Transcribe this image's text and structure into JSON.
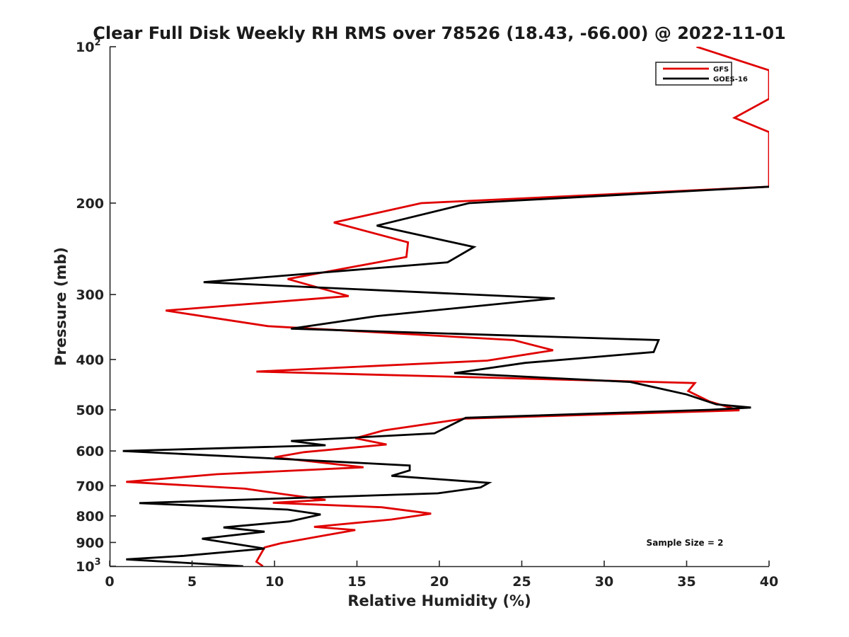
{
  "chart_data": {
    "type": "line",
    "title": "Clear Full Disk Weekly RH RMS over 78526 (18.43, -66.00) @ 2022-11-01",
    "xlabel": "Relative Humidity (%)",
    "ylabel": "Pressure (mb)",
    "xlim": [
      0,
      40
    ],
    "ylim": [
      100,
      1000
    ],
    "y_scale": "log",
    "y_reversed": true,
    "grid": false,
    "legend_position": "top-right",
    "x_ticks": [
      0,
      5,
      10,
      15,
      20,
      25,
      30,
      35,
      40
    ],
    "y_ticks": [
      {
        "value": 100,
        "base": "10",
        "exp": "2"
      },
      {
        "value": 200,
        "label": "200"
      },
      {
        "value": 300,
        "label": "300"
      },
      {
        "value": 400,
        "label": "400"
      },
      {
        "value": 500,
        "label": "500"
      },
      {
        "value": 600,
        "label": "600"
      },
      {
        "value": 700,
        "label": "700"
      },
      {
        "value": 800,
        "label": "800"
      },
      {
        "value": 900,
        "label": "900"
      },
      {
        "value": 1000,
        "base": "10",
        "exp": "3"
      }
    ],
    "annotation": "Sample Size = 2",
    "series": [
      {
        "name": "GFS",
        "color": "#e00000",
        "points": [
          [
            35.6,
            100
          ],
          [
            40,
            111
          ],
          [
            40,
            126
          ],
          [
            37.9,
            137
          ],
          [
            40,
            146
          ],
          [
            40,
            186
          ],
          [
            18.9,
            200
          ],
          [
            13.6,
            218
          ],
          [
            18.1,
            238
          ],
          [
            18.0,
            254
          ],
          [
            10.8,
            280
          ],
          [
            14.5,
            302
          ],
          [
            3.4,
            322
          ],
          [
            9.6,
            345
          ],
          [
            24.5,
            367
          ],
          [
            26.9,
            384
          ],
          [
            22.9,
            402
          ],
          [
            8.9,
            422
          ],
          [
            35.5,
            444
          ],
          [
            35.1,
            460
          ],
          [
            36.4,
            482
          ],
          [
            38.2,
            501
          ],
          [
            21.5,
            520
          ],
          [
            16.6,
            548
          ],
          [
            14.9,
            567
          ],
          [
            16.8,
            583
          ],
          [
            11.8,
            603
          ],
          [
            10.0,
            617
          ],
          [
            15.4,
            645
          ],
          [
            6.5,
            665
          ],
          [
            1.0,
            688
          ],
          [
            8.2,
            709
          ],
          [
            10.6,
            727
          ],
          [
            13.1,
            745
          ],
          [
            9.9,
            755
          ],
          [
            16.5,
            770
          ],
          [
            19.5,
            792
          ],
          [
            17.1,
            813
          ],
          [
            12.4,
            840
          ],
          [
            14.9,
            852
          ],
          [
            13.1,
            872
          ],
          [
            10.4,
            903
          ],
          [
            9.4,
            920
          ],
          [
            8.9,
            980
          ],
          [
            9.3,
            1000
          ]
        ]
      },
      {
        "name": "GOES-16",
        "color": "#000000",
        "points": [
          [
            40,
            186
          ],
          [
            21.8,
            200
          ],
          [
            16.2,
            221
          ],
          [
            22.1,
            243
          ],
          [
            20.5,
            260
          ],
          [
            5.7,
            284
          ],
          [
            27.0,
            305
          ],
          [
            16.2,
            330
          ],
          [
            11.0,
            349
          ],
          [
            33.3,
            367
          ],
          [
            33.0,
            387
          ],
          [
            25.2,
            406
          ],
          [
            20.9,
            425
          ],
          [
            31.6,
            442
          ],
          [
            35.0,
            467
          ],
          [
            36.8,
            488
          ],
          [
            38.9,
            495
          ],
          [
            36.4,
            500
          ],
          [
            21.6,
            518
          ],
          [
            19.7,
            555
          ],
          [
            11.0,
            574
          ],
          [
            13.1,
            585
          ],
          [
            0.8,
            600
          ],
          [
            9.8,
            620
          ],
          [
            18.2,
            640
          ],
          [
            18.2,
            654
          ],
          [
            17.1,
            670
          ],
          [
            23.0,
            691
          ],
          [
            22.5,
            705
          ],
          [
            19.9,
            724
          ],
          [
            1.8,
            756
          ],
          [
            10.8,
            778
          ],
          [
            12.8,
            795
          ],
          [
            10.9,
            820
          ],
          [
            6.9,
            842
          ],
          [
            9.4,
            858
          ],
          [
            5.6,
            885
          ],
          [
            9.4,
            925
          ],
          [
            4.5,
            955
          ],
          [
            1.0,
            970
          ],
          [
            8.1,
            1000
          ]
        ]
      }
    ]
  }
}
